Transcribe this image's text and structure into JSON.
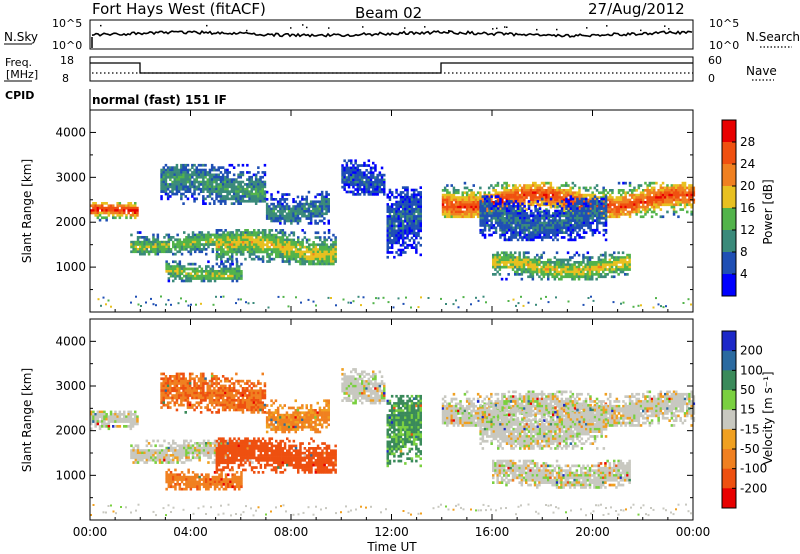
{
  "header": {
    "station": "Fort Hays West (fitACF)",
    "beam": "Beam 02",
    "date": "27/Aug/2012"
  },
  "top_panels": {
    "nsky_label": "N.Sky",
    "nsky_ticks": [
      "10^5",
      "10^0"
    ],
    "nsearch_label": "N.Search",
    "nsearch_ticks": [
      "10^5",
      "10^0"
    ],
    "freq_label": "Freq.",
    "freq_unit": "[MHz]",
    "freq_ticks": [
      "18",
      "8"
    ],
    "nave_label": "Nave",
    "nave_ticks": [
      "60",
      "0"
    ],
    "cpid_label": "CPID",
    "cpid_text": "normal (fast) 151 IF"
  },
  "colors": {
    "power_scale": [
      "#0000ff",
      "#1f4fb4",
      "#3a8a7a",
      "#52b34a",
      "#e8c020",
      "#f08020",
      "#f05010",
      "#e80000"
    ],
    "velocity_scale": [
      "#1c28c8",
      "#2a6aa0",
      "#3a8a5a",
      "#7ad040",
      "#c8c8c0",
      "#f0a020",
      "#f08020",
      "#ee5010",
      "#e80000"
    ]
  },
  "chart_data": [
    {
      "type": "heatmap",
      "name": "power",
      "ylabel": "Slant Range [km]",
      "yticks": [
        "1000",
        "2000",
        "3000",
        "4000"
      ],
      "ylim": [
        0,
        4500
      ],
      "xlim_hours": [
        0,
        24
      ],
      "colorbar": {
        "label": "Power [dB]",
        "ticks": [
          "4",
          "8",
          "12",
          "16",
          "20",
          "24",
          "28"
        ],
        "range": [
          0,
          32
        ]
      },
      "bands": [
        {
          "t": [
            0.0,
            1.9
          ],
          "range_km": [
            2050,
            2450
          ],
          "level": 26
        },
        {
          "t": [
            1.6,
            6.5
          ],
          "range_km": [
            1300,
            1800
          ],
          "level": 14
        },
        {
          "t": [
            2.8,
            7.0
          ],
          "range_km": [
            2400,
            3300
          ],
          "level": 10
        },
        {
          "t": [
            3.0,
            6.0
          ],
          "range_km": [
            700,
            1150
          ],
          "level": 14
        },
        {
          "t": [
            5.0,
            9.8
          ],
          "range_km": [
            1050,
            1850
          ],
          "level": 16
        },
        {
          "t": [
            7.0,
            9.5
          ],
          "range_km": [
            2000,
            2700
          ],
          "level": 9
        },
        {
          "t": [
            10.0,
            11.7
          ],
          "range_km": [
            2600,
            3400
          ],
          "level": 6
        },
        {
          "t": [
            11.8,
            13.2
          ],
          "range_km": [
            1200,
            2800
          ],
          "level": 6
        },
        {
          "t": [
            14.0,
            24.0
          ],
          "range_km": [
            2100,
            2900
          ],
          "level": 24
        },
        {
          "t": [
            16.0,
            21.5
          ],
          "range_km": [
            750,
            1350
          ],
          "level": 16
        },
        {
          "t": [
            15.5,
            20.5
          ],
          "range_km": [
            1600,
            2600
          ],
          "level": 7
        }
      ]
    },
    {
      "type": "heatmap",
      "name": "velocity",
      "ylabel": "Slant Range [km]",
      "yticks": [
        "1000",
        "2000",
        "3000",
        "4000"
      ],
      "ylim": [
        0,
        4500
      ],
      "xlim_hours": [
        0,
        24
      ],
      "xticks": [
        "00:00",
        "04:00",
        "08:00",
        "12:00",
        "16:00",
        "20:00",
        "00:00"
      ],
      "xlabel": "Time UT",
      "colorbar": {
        "label": "Velocity [m s⁻¹]",
        "ticks": [
          "200",
          "100",
          "50",
          "15",
          "-15",
          "-50",
          "-100",
          "-200"
        ],
        "range": [
          -250,
          250
        ]
      },
      "bands": [
        {
          "t": [
            0.0,
            1.9
          ],
          "range_km": [
            2050,
            2450
          ],
          "v": 0
        },
        {
          "t": [
            1.6,
            6.5
          ],
          "range_km": [
            1300,
            1800
          ],
          "v": 0
        },
        {
          "t": [
            2.8,
            7.0
          ],
          "range_km": [
            2400,
            3300
          ],
          "v": -70
        },
        {
          "t": [
            3.0,
            6.0
          ],
          "range_km": [
            700,
            1150
          ],
          "v": -60
        },
        {
          "t": [
            5.0,
            9.8
          ],
          "range_km": [
            1050,
            1850
          ],
          "v": -110
        },
        {
          "t": [
            7.0,
            9.5
          ],
          "range_km": [
            2000,
            2700
          ],
          "v": -40
        },
        {
          "t": [
            10.0,
            11.7
          ],
          "range_km": [
            2600,
            3400
          ],
          "v": 0
        },
        {
          "t": [
            11.8,
            13.2
          ],
          "range_km": [
            1200,
            2800
          ],
          "v": 40
        },
        {
          "t": [
            14.0,
            24.0
          ],
          "range_km": [
            2100,
            2900
          ],
          "v": 0
        },
        {
          "t": [
            16.0,
            21.5
          ],
          "range_km": [
            750,
            1350
          ],
          "v": 0
        },
        {
          "t": [
            15.5,
            20.5
          ],
          "range_km": [
            1600,
            2600
          ],
          "v": 0
        }
      ]
    }
  ]
}
